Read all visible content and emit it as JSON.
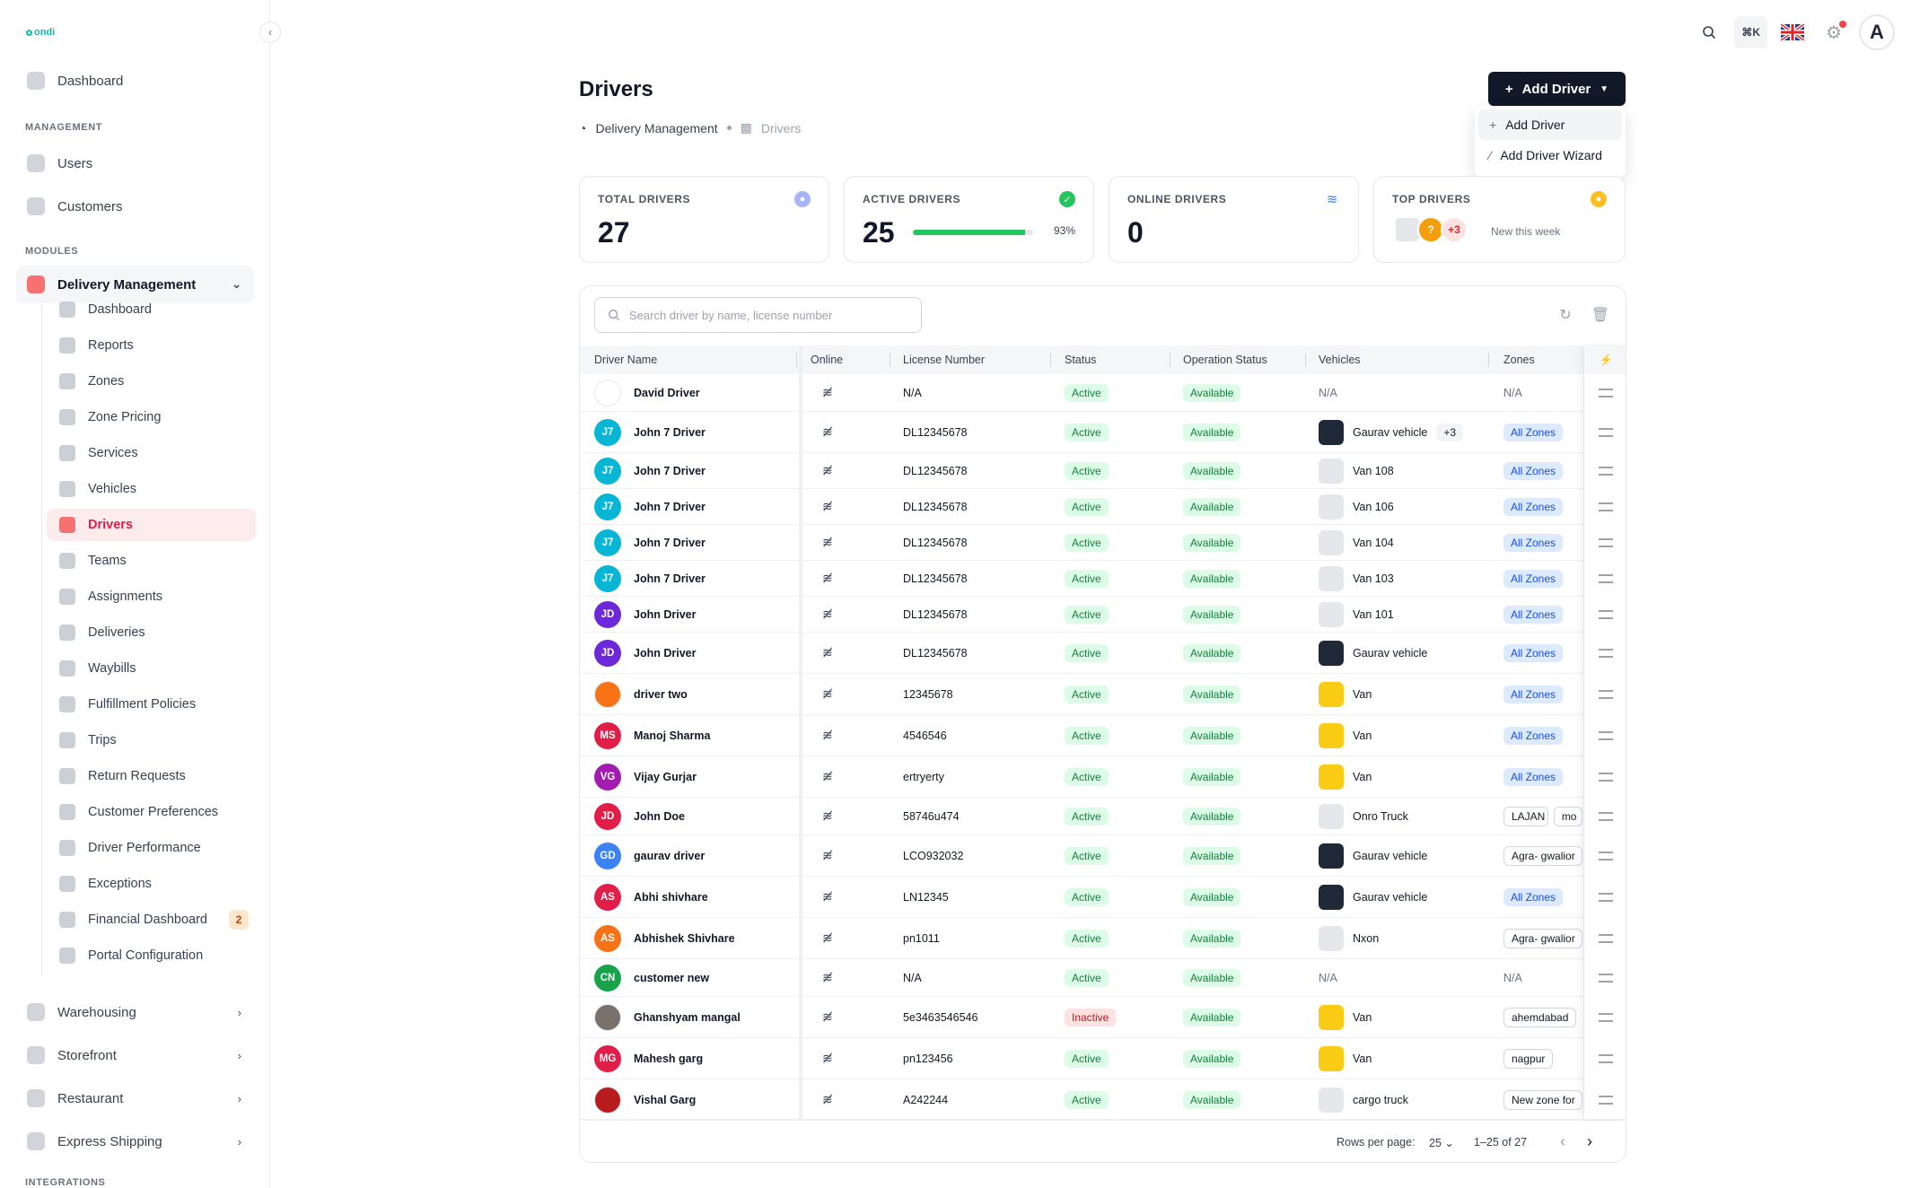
{
  "sidebar": {
    "logo": "ondi",
    "dashboard": "Dashboard",
    "section_management": "MANAGEMENT",
    "users": "Users",
    "customers": "Customers",
    "section_modules": "MODULES",
    "delivery_management": "Delivery Management",
    "sub_items": [
      {
        "label": "Dashboard",
        "icon": "dashboard-icon"
      },
      {
        "label": "Reports",
        "icon": "reports-icon"
      },
      {
        "label": "Zones",
        "icon": "zones-icon"
      },
      {
        "label": "Zone Pricing",
        "icon": "pricing-icon"
      },
      {
        "label": "Services",
        "icon": "services-icon"
      },
      {
        "label": "Vehicles",
        "icon": "vehicles-icon"
      },
      {
        "label": "Drivers",
        "icon": "drivers-icon"
      },
      {
        "label": "Teams",
        "icon": "teams-icon"
      },
      {
        "label": "Assignments",
        "icon": "assignments-icon"
      },
      {
        "label": "Deliveries",
        "icon": "deliveries-icon"
      },
      {
        "label": "Waybills",
        "icon": "waybills-icon"
      },
      {
        "label": "Fulfillment Policies",
        "icon": "policies-icon"
      },
      {
        "label": "Trips",
        "icon": "trips-icon"
      },
      {
        "label": "Return Requests",
        "icon": "returns-icon"
      },
      {
        "label": "Customer Preferences",
        "icon": "preferences-icon"
      },
      {
        "label": "Driver Performance",
        "icon": "performance-icon"
      },
      {
        "label": "Exceptions",
        "icon": "exceptions-icon"
      },
      {
        "label": "Financial Dashboard",
        "icon": "financial-icon"
      },
      {
        "label": "Portal Configuration",
        "icon": "portal-icon"
      }
    ],
    "financial_badge": "2",
    "warehousing": "Warehousing",
    "storefront": "Storefront",
    "restaurant": "Restaurant",
    "express_shipping": "Express Shipping",
    "section_integrations": "INTEGRATIONS"
  },
  "topbar": {
    "shortcut": "⌘K",
    "avatar": "A"
  },
  "header": {
    "title": "Drivers",
    "breadcrumb_parent": "Delivery Management",
    "breadcrumb_current": "Drivers",
    "add_button": "Add Driver",
    "dropdown": [
      "Add Driver",
      "Add Driver Wizard"
    ]
  },
  "stats": {
    "total_label": "TOTAL DRIVERS",
    "total_value": "27",
    "active_label": "ACTIVE DRIVERS",
    "active_value": "25",
    "active_pct": "93%",
    "online_label": "ONLINE DRIVERS",
    "online_value": "0",
    "top_label": "TOP DRIVERS",
    "top_more": "+3",
    "top_q": "?",
    "top_caption": "New this week"
  },
  "table": {
    "search_placeholder": "Search driver by name, license number",
    "columns": [
      "Driver Name",
      "Online",
      "License Number",
      "Status",
      "Operation Status",
      "Vehicles",
      "Zones"
    ],
    "rows": [
      {
        "initials": "",
        "color": "#ffffff",
        "name": "David Driver",
        "license": "N/A",
        "status": "Active",
        "op": "Available",
        "vehicle": "N/A",
        "veh_img": "none",
        "zone": "N/A",
        "zone_style": "text"
      },
      {
        "initials": "J7",
        "color": "#06b6d4",
        "name": "John 7 Driver",
        "license": "DL12345678",
        "status": "Active",
        "op": "Available",
        "vehicle": "Gaurav vehicle",
        "veh_img": "dark",
        "veh_more": "+3",
        "zone": "All Zones",
        "zone_style": "blue"
      },
      {
        "initials": "J7",
        "color": "#06b6d4",
        "name": "John 7 Driver",
        "license": "DL12345678",
        "status": "Active",
        "op": "Available",
        "vehicle": "Van 108",
        "veh_img": "grey",
        "zone": "All Zones",
        "zone_style": "blue"
      },
      {
        "initials": "J7",
        "color": "#06b6d4",
        "name": "John 7 Driver",
        "license": "DL12345678",
        "status": "Active",
        "op": "Available",
        "vehicle": "Van 106",
        "veh_img": "grey",
        "zone": "All Zones",
        "zone_style": "blue"
      },
      {
        "initials": "J7",
        "color": "#06b6d4",
        "name": "John 7 Driver",
        "license": "DL12345678",
        "status": "Active",
        "op": "Available",
        "vehicle": "Van 104",
        "veh_img": "grey",
        "zone": "All Zones",
        "zone_style": "blue"
      },
      {
        "initials": "J7",
        "color": "#06b6d4",
        "name": "John 7 Driver",
        "license": "DL12345678",
        "status": "Active",
        "op": "Available",
        "vehicle": "Van 103",
        "veh_img": "grey",
        "zone": "All Zones",
        "zone_style": "blue"
      },
      {
        "initials": "JD",
        "color": "#6d28d9",
        "name": "John Driver",
        "license": "DL12345678",
        "status": "Active",
        "op": "Available",
        "vehicle": "Van 101",
        "veh_img": "grey",
        "zone": "All Zones",
        "zone_style": "blue"
      },
      {
        "initials": "JD",
        "color": "#6d28d9",
        "name": "John Driver",
        "license": "DL12345678",
        "status": "Active",
        "op": "Available",
        "vehicle": "Gaurav vehicle",
        "veh_img": "dark",
        "zone": "All Zones",
        "zone_style": "blue"
      },
      {
        "initials": "",
        "color": "#f97316",
        "name": "driver two",
        "license": "12345678",
        "status": "Active",
        "op": "Available",
        "vehicle": "Van",
        "veh_img": "yellow",
        "zone": "All Zones",
        "zone_style": "blue"
      },
      {
        "initials": "MS",
        "color": "#e11d48",
        "name": "Manoj Sharma",
        "license": "4546546",
        "status": "Active",
        "op": "Available",
        "vehicle": "Van",
        "veh_img": "yellow",
        "zone": "All Zones",
        "zone_style": "blue"
      },
      {
        "initials": "VG",
        "color": "#a21caf",
        "name": "Vijay Gurjar",
        "license": "ertryerty",
        "status": "Active",
        "op": "Available",
        "vehicle": "Van",
        "veh_img": "yellow",
        "zone": "All Zones",
        "zone_style": "blue"
      },
      {
        "initials": "JD",
        "color": "#e11d48",
        "name": "John Doe",
        "license": "58746u474",
        "status": "Active",
        "op": "Available",
        "vehicle": "Onro Truck",
        "veh_img": "grey",
        "zone": "LAJAN",
        "zone2": "mo",
        "zone_style": "outline"
      },
      {
        "initials": "GD",
        "color": "#3b82f6",
        "name": "gaurav driver",
        "license": "LCO932032",
        "status": "Active",
        "op": "Available",
        "vehicle": "Gaurav vehicle",
        "veh_img": "dark",
        "zone": "Agra- gwalior",
        "zone_style": "outline"
      },
      {
        "initials": "AS",
        "color": "#e11d48",
        "name": "Abhi shivhare",
        "license": "LN12345",
        "status": "Active",
        "op": "Available",
        "vehicle": "Gaurav vehicle",
        "veh_img": "dark",
        "zone": "All Zones",
        "zone_style": "blue"
      },
      {
        "initials": "AS",
        "color": "#f97316",
        "name": "Abhishek Shivhare",
        "license": "pn1011",
        "status": "Active",
        "op": "Available",
        "vehicle": "Nxon",
        "veh_img": "grey",
        "zone": "Agra- gwalior",
        "zone_style": "outline"
      },
      {
        "initials": "CN",
        "color": "#16a34a",
        "name": "customer new",
        "license": "N/A",
        "status": "Active",
        "op": "Available",
        "vehicle": "N/A",
        "veh_img": "none",
        "zone": "N/A",
        "zone_style": "text"
      },
      {
        "initials": "",
        "color": "#78716c",
        "name": "Ghanshyam mangal",
        "license": "5e3463546546",
        "status": "Inactive",
        "op": "Available",
        "vehicle": "Van",
        "veh_img": "yellow",
        "zone": "ahemdabad",
        "zone_style": "outline"
      },
      {
        "initials": "MG",
        "color": "#e11d48",
        "name": "Mahesh garg",
        "license": "pn123456",
        "status": "Active",
        "op": "Available",
        "vehicle": "Van",
        "veh_img": "yellow",
        "zone": "nagpur",
        "zone_style": "outline"
      },
      {
        "initials": "",
        "color": "#b91c1c",
        "name": "Vishal Garg",
        "license": "A242244",
        "status": "Active",
        "op": "Available",
        "vehicle": "cargo truck",
        "veh_img": "grey",
        "zone": "New zone for",
        "zone_style": "outline"
      }
    ],
    "rows_per_page_label": "Rows per page:",
    "rows_per_page": "25",
    "range": "1–25 of 27"
  },
  "colors": {
    "accent": "#111827",
    "active_sidebar": "#e11d48",
    "success": "#22c55e"
  }
}
